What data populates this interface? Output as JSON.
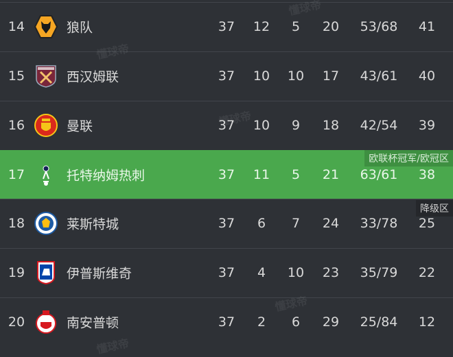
{
  "columns": [
    "rank",
    "team",
    "played",
    "won",
    "drawn",
    "lost",
    "goals",
    "points"
  ],
  "rows": [
    {
      "rank": "14",
      "team": "狼队",
      "crest": "wolves-crest-icon",
      "played": "37",
      "won": "12",
      "drawn": "5",
      "lost": "20",
      "goals": "53/68",
      "points": "41"
    },
    {
      "rank": "15",
      "team": "西汉姆联",
      "crest": "west-ham-crest-icon",
      "played": "37",
      "won": "10",
      "drawn": "10",
      "lost": "17",
      "goals": "43/61",
      "points": "40"
    },
    {
      "rank": "16",
      "team": "曼联",
      "crest": "man-utd-crest-icon",
      "played": "37",
      "won": "10",
      "drawn": "9",
      "lost": "18",
      "goals": "42/54",
      "points": "39"
    },
    {
      "rank": "17",
      "team": "托特纳姆热刺",
      "crest": "tottenham-crest-icon",
      "played": "37",
      "won": "11",
      "drawn": "5",
      "lost": "21",
      "goals": "63/61",
      "points": "38",
      "tag": "欧联杯冠军/欧冠区",
      "highlight": true
    },
    {
      "rank": "18",
      "team": "莱斯特城",
      "crest": "leicester-crest-icon",
      "played": "37",
      "won": "6",
      "drawn": "7",
      "lost": "24",
      "goals": "33/78",
      "points": "25",
      "tag": "降级区"
    },
    {
      "rank": "19",
      "team": "伊普斯维奇",
      "crest": "ipswich-crest-icon",
      "played": "37",
      "won": "4",
      "drawn": "10",
      "lost": "23",
      "goals": "35/79",
      "points": "22"
    },
    {
      "rank": "20",
      "team": "南安普顿",
      "crest": "southampton-crest-icon",
      "played": "37",
      "won": "2",
      "drawn": "6",
      "lost": "29",
      "goals": "25/84",
      "points": "12"
    }
  ],
  "watermark": "懂球帝",
  "colors": {
    "background": "#2e3136",
    "highlight": "#4aa84d",
    "highlight_tag": "#3e8f41",
    "relegation_tag": "#25272b"
  }
}
